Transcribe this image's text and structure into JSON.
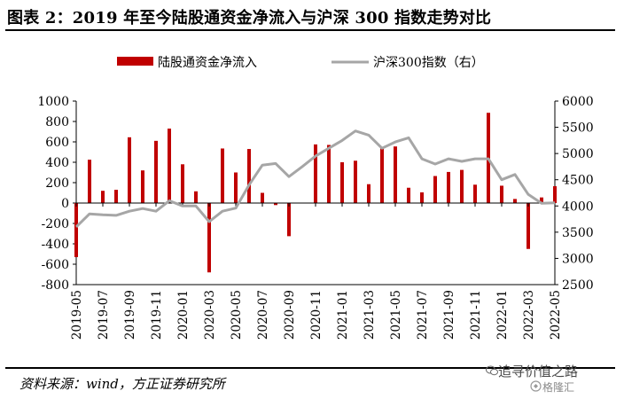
{
  "title": "图表 2：2019 年至今陆股通资金净流入与沪深 300 指数走势对比",
  "source": "资料来源：wind，方正证券研究所",
  "watermark": "追寻价值之路",
  "watermark_sub": "格隆汇",
  "colors": {
    "bar": "#c00000",
    "line": "#a6a6a6",
    "axis": "#000000"
  },
  "chart_data": {
    "type": "bar",
    "title": "",
    "xlabel": "",
    "ylabel": "",
    "legend_position": "top",
    "grid": false,
    "categories": [
      "2019-05",
      "2019-06",
      "2019-07",
      "2019-08",
      "2019-09",
      "2019-10",
      "2019-11",
      "2019-12",
      "2020-01",
      "2020-02",
      "2020-03",
      "2020-04",
      "2020-05",
      "2020-06",
      "2020-07",
      "2020-08",
      "2020-09",
      "2020-10",
      "2020-11",
      "2020-12",
      "2021-01",
      "2021-02",
      "2021-03",
      "2021-04",
      "2021-05",
      "2021-06",
      "2021-07",
      "2021-08",
      "2021-09",
      "2021-10",
      "2021-11",
      "2021-12",
      "2022-01",
      "2022-02",
      "2022-03",
      "2022-04",
      "2022-05"
    ],
    "x_tick_labels": [
      "2019-05",
      "2019-07",
      "2019-09",
      "2019-11",
      "2020-01",
      "2020-03",
      "2020-05",
      "2020-07",
      "2020-09",
      "2020-11",
      "2021-01",
      "2021-03",
      "2021-05",
      "2021-07",
      "2021-09",
      "2021-11",
      "2022-01",
      "2022-03",
      "2022-05"
    ],
    "ylim": [
      -800,
      1000
    ],
    "y_ticks": [
      "1000",
      "800",
      "600",
      "400",
      "200",
      "0",
      "-200",
      "-400",
      "-600",
      "-800"
    ],
    "y2lim": [
      2500,
      6000
    ],
    "y2_ticks": [
      "6000",
      "5500",
      "5000",
      "4500",
      "4000",
      "3500",
      "3000",
      "2500"
    ],
    "series": [
      {
        "name": "陆股通资金净流入",
        "type": "bar",
        "axis": "left",
        "values": [
          -530,
          425,
          120,
          130,
          645,
          320,
          610,
          730,
          380,
          115,
          -680,
          535,
          300,
          530,
          100,
          -20,
          -325,
          0,
          575,
          570,
          400,
          415,
          185,
          540,
          555,
          150,
          105,
          265,
          305,
          325,
          180,
          885,
          170,
          40,
          -450,
          55,
          165
        ]
      },
      {
        "name": "沪深300指数（右）",
        "type": "line",
        "axis": "right",
        "values": [
          3600,
          3850,
          3830,
          3820,
          3900,
          3950,
          3900,
          4100,
          4000,
          4000,
          3700,
          3900,
          3960,
          4400,
          4780,
          4810,
          4560,
          4750,
          4950,
          5100,
          5250,
          5430,
          5350,
          5100,
          5220,
          5300,
          4900,
          4800,
          4900,
          4850,
          4900,
          4900,
          4500,
          4600,
          4220,
          4050,
          4060
        ]
      }
    ]
  }
}
